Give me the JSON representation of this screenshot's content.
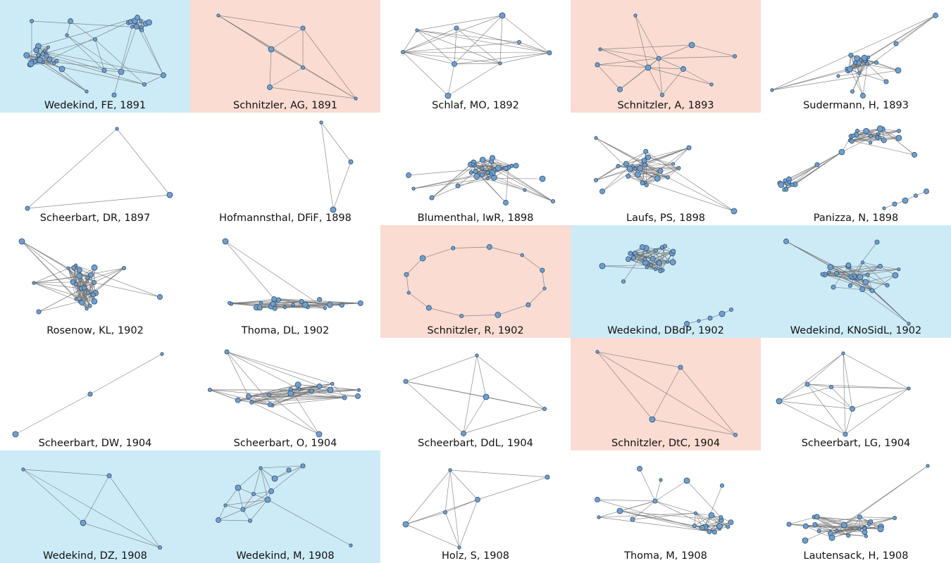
{
  "colors": {
    "blue": "#cdebf7",
    "red": "#fadcd2",
    "none": "#ffffff",
    "node_fill": "#6f9fcf",
    "node_stroke": "#2f4f6f",
    "edge": "#707070"
  },
  "panels": [
    {
      "label": "Wedekind, FE, 1891",
      "highlight": "blue"
    },
    {
      "label": "Schnitzler, AG, 1891",
      "highlight": "red"
    },
    {
      "label": "Schlaf, MO, 1892",
      "highlight": "none"
    },
    {
      "label": "Schnitzler, A, 1893",
      "highlight": "red"
    },
    {
      "label": "Sudermann, H, 1893",
      "highlight": "none"
    },
    {
      "label": "Scheerbart, DR, 1897",
      "highlight": "none"
    },
    {
      "label": "Hofmannsthal, DFiF, 1898",
      "highlight": "none"
    },
    {
      "label": "Blumenthal, IwR, 1898",
      "highlight": "none"
    },
    {
      "label": "Laufs, PS, 1898",
      "highlight": "none"
    },
    {
      "label": "Panizza, N, 1898",
      "highlight": "none"
    },
    {
      "label": "Rosenow, KL, 1902",
      "highlight": "none"
    },
    {
      "label": "Thoma, DL, 1902",
      "highlight": "none"
    },
    {
      "label": "Schnitzler, R, 1902",
      "highlight": "red"
    },
    {
      "label": "Wedekind, DBdP, 1902",
      "highlight": "blue"
    },
    {
      "label": "Wedekind, KNoSidL, 1902",
      "highlight": "blue"
    },
    {
      "label": "Scheerbart, DW, 1904",
      "highlight": "none"
    },
    {
      "label": "Scheerbart, O, 1904",
      "highlight": "none"
    },
    {
      "label": "Scheerbart, DdL, 1904",
      "highlight": "none"
    },
    {
      "label": "Schnitzler, DtC, 1904",
      "highlight": "red"
    },
    {
      "label": "Scheerbart, LG, 1904",
      "highlight": "none"
    },
    {
      "label": "Wedekind, DZ, 1908",
      "highlight": "blue"
    },
    {
      "label": "Wedekind, M, 1908",
      "highlight": "blue"
    },
    {
      "label": "Holz, S, 1908",
      "highlight": "none"
    },
    {
      "label": "Thoma, M, 1908",
      "highlight": "none"
    },
    {
      "label": "Lautensack, H, 1908",
      "highlight": "none"
    }
  ]
}
